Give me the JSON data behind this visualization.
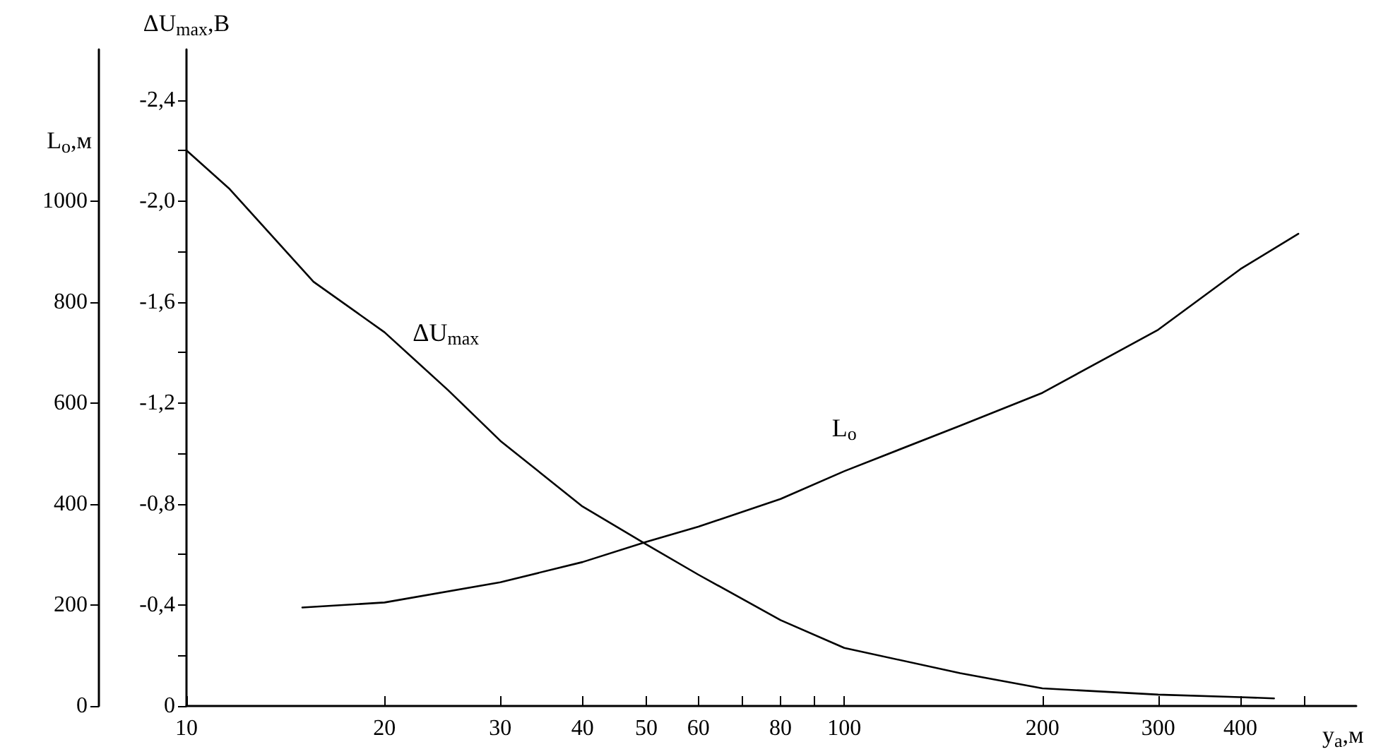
{
  "chart_data": {
    "type": "line",
    "xlabel": "y$_{a}$,м",
    "ylabel": "L$_{o}$,м",
    "y2label": "ΔU$_{max}$,В",
    "log": "x",
    "grid": false,
    "legend": false,
    "marker": "none",
    "line_style": "solid",
    "xlim": [
      10,
      600
    ],
    "xticks": [
      10,
      20,
      30,
      40,
      50,
      60,
      {
        "value": 70,
        "label": null
      },
      80,
      {
        "value": 90,
        "label": null
      },
      100,
      200,
      300,
      400,
      {
        "value": 500,
        "label": null
      }
    ],
    "ylim": [
      0,
      1300
    ],
    "yticks": [
      0,
      200,
      400,
      600,
      800,
      1000
    ],
    "y2lim": [
      0,
      -2.6
    ],
    "y2ticks": [
      {
        "value": 0,
        "label": "0"
      },
      {
        "value": -0.2,
        "label": null
      },
      {
        "value": -0.4,
        "label": "-0,4"
      },
      {
        "value": -0.6,
        "label": null
      },
      {
        "value": -0.8,
        "label": "-0,8"
      },
      {
        "value": -1.0,
        "label": null
      },
      {
        "value": -1.2,
        "label": "-1,2"
      },
      {
        "value": -1.4,
        "label": null
      },
      {
        "value": -1.6,
        "label": "-1,6"
      },
      {
        "value": -1.8,
        "label": null
      },
      {
        "value": -2.0,
        "label": "-2,0"
      },
      {
        "value": -2.2,
        "label": null
      },
      {
        "value": -2.4,
        "label": "-2,4"
      }
    ],
    "series": [
      {
        "name": "ΔU$_{max}$",
        "color": "#000000",
        "axis": "y2",
        "x": [
          10,
          11.6,
          15.6,
          20,
          25,
          30,
          40,
          50,
          60,
          80,
          100,
          150,
          200,
          300,
          400,
          450
        ],
        "values": [
          -2.2,
          -2.05,
          -1.68,
          -1.48,
          -1.25,
          -1.05,
          -0.79,
          -0.64,
          -0.52,
          -0.34,
          -0.23,
          -0.13,
          -0.07,
          -0.045,
          -0.035,
          -0.03
        ]
      },
      {
        "name": "L$_{o}$",
        "color": "#000000",
        "axis": "y",
        "x": [
          15,
          20,
          30,
          40,
          50,
          60,
          80,
          100,
          150,
          200,
          300,
          400,
          490
        ],
        "values": [
          195,
          205,
          245,
          285,
          325,
          355,
          410,
          465,
          555,
          620,
          745,
          865,
          935
        ]
      }
    ]
  }
}
